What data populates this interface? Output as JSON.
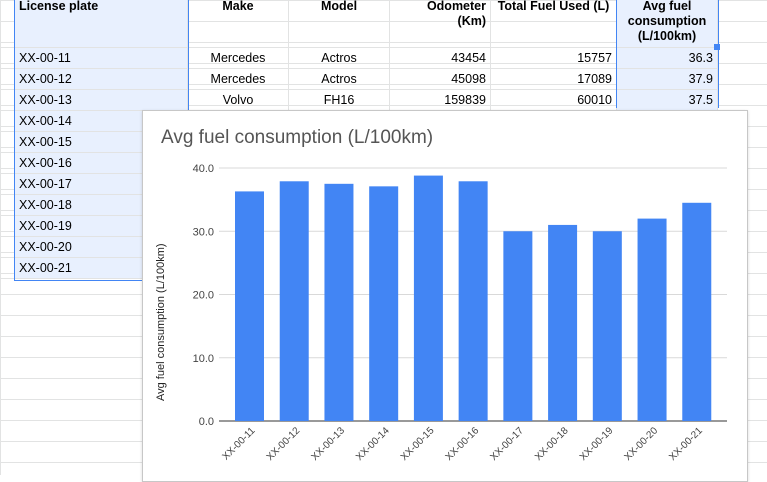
{
  "sheet": {
    "headers": {
      "license_plate": "License plate",
      "make": "Make",
      "model": "Model",
      "odometer_line1": "Odometer",
      "odometer_line2": "(Km)",
      "fuel": "Total Fuel Used (L)",
      "avg_line1": "Avg fuel",
      "avg_line2": "consumption",
      "avg_line3": "(L/100km)"
    },
    "rows": [
      {
        "plate": "XX-00-11",
        "make": "Mercedes",
        "model": "Actros",
        "odometer": "43454",
        "fuel": "15757",
        "avg": "36.3"
      },
      {
        "plate": "XX-00-12",
        "make": "Mercedes",
        "model": "Actros",
        "odometer": "45098",
        "fuel": "17089",
        "avg": "37.9"
      },
      {
        "plate": "XX-00-13",
        "make": "Volvo",
        "model": "FH16",
        "odometer": "159839",
        "fuel": "60010",
        "avg": "37.5"
      },
      {
        "plate": "XX-00-14"
      },
      {
        "plate": "XX-00-15"
      },
      {
        "plate": "XX-00-16"
      },
      {
        "plate": "XX-00-17"
      },
      {
        "plate": "XX-00-18"
      },
      {
        "plate": "XX-00-19"
      },
      {
        "plate": "XX-00-20"
      },
      {
        "plate": "XX-00-21"
      }
    ]
  },
  "chart_data": {
    "type": "bar",
    "title": "Avg fuel consumption (L/100km)",
    "xlabel": "",
    "ylabel": "Avg fuel consumption (L/100km)",
    "categories": [
      "XX-00-11",
      "XX-00-12",
      "XX-00-13",
      "XX-00-14",
      "XX-00-15",
      "XX-00-16",
      "XX-00-17",
      "XX-00-18",
      "XX-00-19",
      "XX-00-20",
      "XX-00-21"
    ],
    "values": [
      36.3,
      37.9,
      37.5,
      37.1,
      38.8,
      37.9,
      30.0,
      31.0,
      30.0,
      32.0,
      34.5
    ],
    "ylim": [
      0,
      40
    ],
    "yticks": [
      "0.0",
      "10.0",
      "20.0",
      "30.0",
      "40.0"
    ],
    "grid": true,
    "bar_color": "#4285f4"
  }
}
